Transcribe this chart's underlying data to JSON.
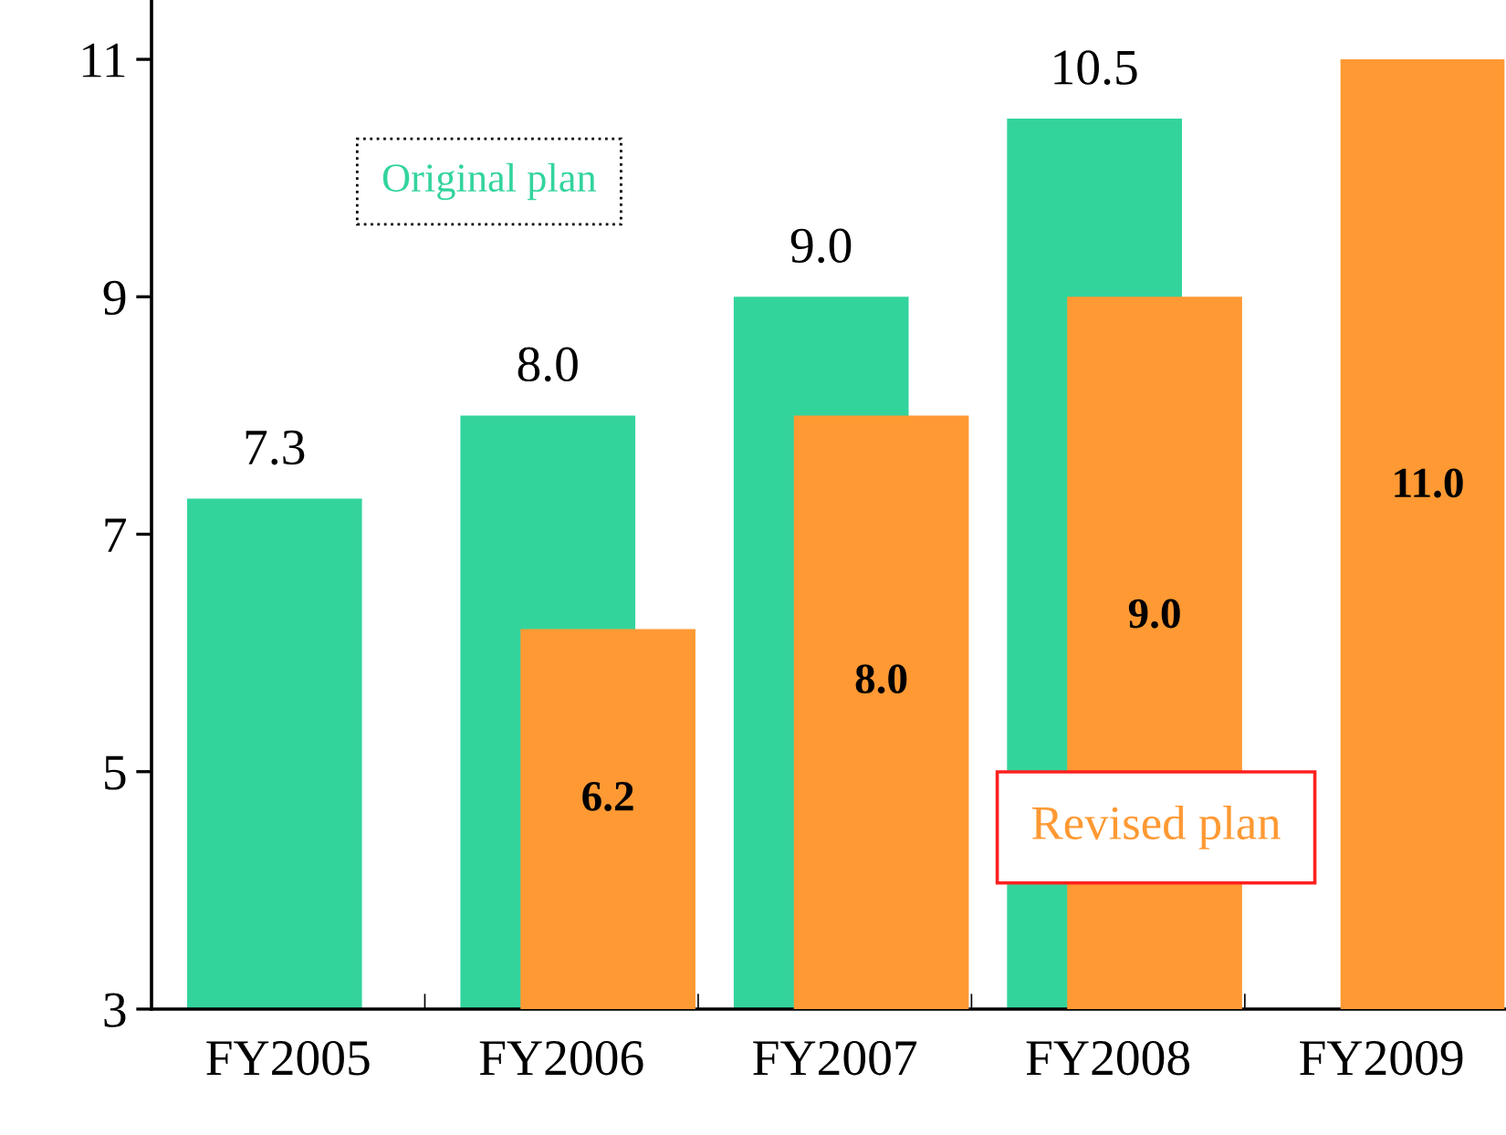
{
  "chart_data": {
    "type": "bar",
    "categories": [
      "FY2005",
      "FY2006",
      "FY2007",
      "FY2008",
      "FY2009"
    ],
    "series": [
      {
        "name": "Original plan",
        "color": "#33d49c",
        "values": [
          7.3,
          8.0,
          9.0,
          10.5,
          null
        ],
        "value_labels": [
          "7.3",
          "8.0",
          "9.0",
          "10.5",
          null
        ]
      },
      {
        "name": "Revised plan",
        "color": "#ff9933",
        "values": [
          null,
          6.2,
          8.0,
          9.0,
          11.0
        ],
        "value_labels": [
          null,
          "6.2",
          "8.0",
          "9.0",
          "11.0"
        ]
      }
    ],
    "ylim": [
      3,
      11.5
    ],
    "yticks": [
      3,
      5,
      7,
      9,
      11
    ],
    "grid": false
  }
}
